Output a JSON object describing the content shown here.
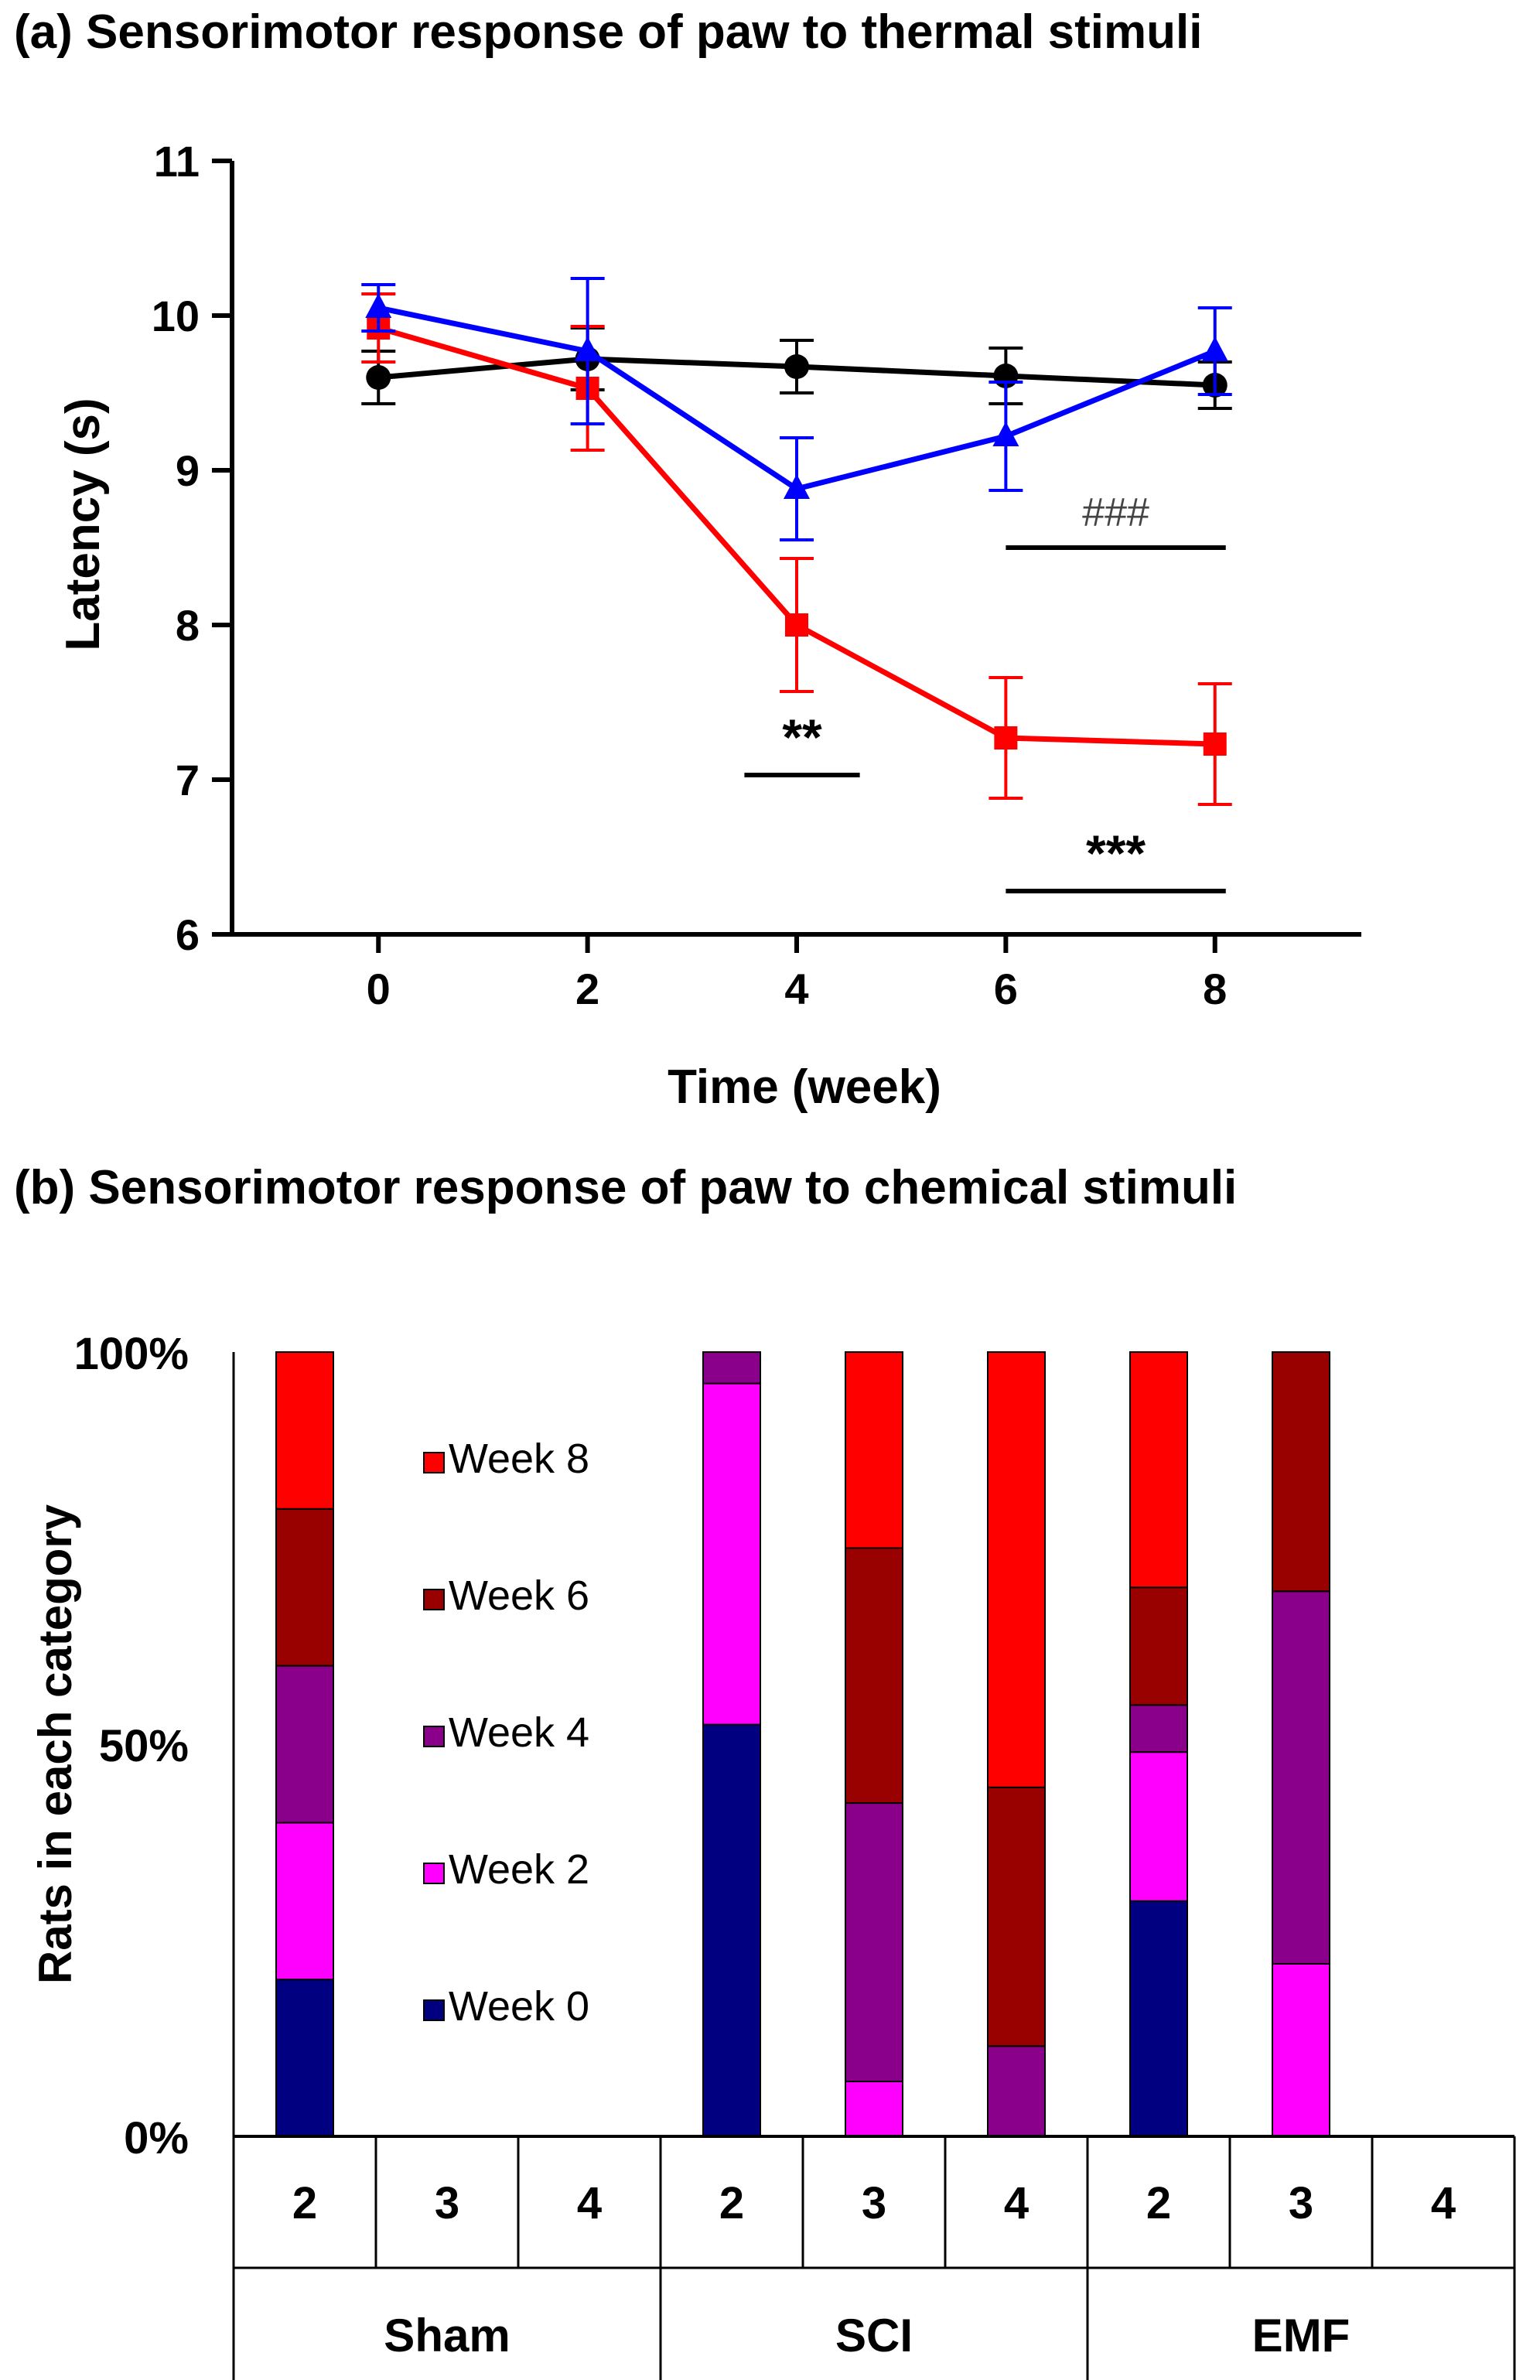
{
  "chart_data": [
    {
      "panel": "(a)",
      "title": "(a) Sensorimotor response of paw to thermal stimuli",
      "type": "line",
      "xlabel": "Time (week)",
      "ylabel": "Latency (s)",
      "x": [
        0,
        2,
        4,
        6,
        8
      ],
      "x_ticks": [
        "0",
        "2",
        "4",
        "6",
        "8"
      ],
      "y_ticks": [
        "6",
        "7",
        "8",
        "9",
        "10",
        "11"
      ],
      "xlim": [
        -1.4,
        9.4
      ],
      "ylim": [
        6,
        11
      ],
      "grid": false,
      "series": [
        {
          "color": "#000000",
          "marker": "circle",
          "values": [
            9.6,
            9.72,
            9.67,
            9.61,
            9.55
          ],
          "error": [
            0.17,
            0.2,
            0.17,
            0.18,
            0.15
          ]
        },
        {
          "color": "#ff0000",
          "marker": "square",
          "values": [
            9.92,
            9.53,
            8.0,
            7.27,
            7.23
          ],
          "error": [
            0.22,
            0.4,
            0.43,
            0.39,
            0.39
          ]
        },
        {
          "color": "#0000ff",
          "marker": "triangle",
          "values": [
            10.05,
            9.77,
            8.88,
            9.22,
            9.77
          ],
          "error": [
            0.15,
            0.47,
            0.33,
            0.35,
            0.28
          ]
        }
      ],
      "annotations": [
        {
          "text": "###",
          "x_from": 6,
          "x_to": 8,
          "y": 8.5,
          "color": "#000000"
        },
        {
          "text": "**",
          "x_from": 3.5,
          "x_to": 4.5,
          "y": 7.03,
          "color": "#000000"
        },
        {
          "text": "***",
          "x_from": 6,
          "x_to": 8,
          "y": 6.28,
          "color": "#000000"
        }
      ]
    },
    {
      "panel": "(b)",
      "title": "(b) Sensorimotor response of paw to chemical stimuli",
      "type": "bar",
      "stacked": true,
      "ylabel": "Rats in each category",
      "y_ticks": [
        "0%",
        "50%",
        "100%"
      ],
      "ylim": [
        0,
        100
      ],
      "categories": [
        "2",
        "3",
        "4",
        "2",
        "3",
        "4",
        "2",
        "3",
        "4"
      ],
      "groups": [
        {
          "label": "Sham",
          "span": [
            0,
            2
          ]
        },
        {
          "label": "SCI",
          "span": [
            3,
            5
          ]
        },
        {
          "label": "EMF",
          "span": [
            6,
            8
          ]
        }
      ],
      "legend_position": "upper-left-inside",
      "series": [
        {
          "name": "Week 0",
          "color": "#000080",
          "values": [
            20,
            0,
            0,
            52.5,
            0,
            0,
            30,
            0,
            0
          ]
        },
        {
          "name": "Week 2",
          "color": "#ff00ff",
          "values": [
            20,
            0,
            0,
            43.5,
            7,
            0,
            19,
            22,
            0
          ]
        },
        {
          "name": "Week 4",
          "color": "#8b008b",
          "values": [
            20,
            0,
            0,
            4,
            35.5,
            11.5,
            6,
            47.5,
            0
          ]
        },
        {
          "name": "Week 6",
          "color": "#990000",
          "values": [
            20,
            0,
            0,
            0,
            32.5,
            33,
            15,
            30.5,
            0
          ]
        },
        {
          "name": "Week 8",
          "color": "#ff0000",
          "values": [
            20,
            0,
            0,
            0,
            25,
            55.5,
            30,
            0,
            0
          ]
        }
      ],
      "legend_order": [
        4,
        3,
        2,
        1,
        0
      ]
    }
  ]
}
